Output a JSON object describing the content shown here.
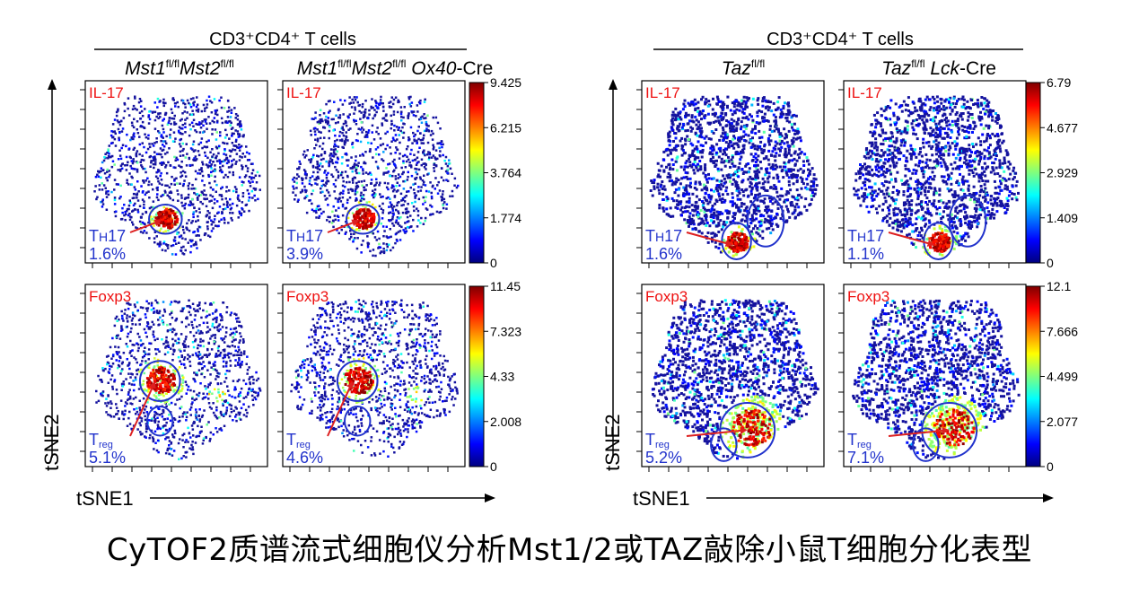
{
  "colors": {
    "cell_low": "#15139e",
    "annotation_blue": "#2233cc",
    "label_red": "#ee1111",
    "arrow_red": "#dd2020",
    "colorbar": [
      "#00007f",
      "#0000ff",
      "#007fff",
      "#00ffff",
      "#7fff7f",
      "#ffff00",
      "#ff7f00",
      "#ff0000",
      "#7f0000"
    ]
  },
  "caption": "CyTOF2质谱流式细胞仪分析Mst1/2或TAZ敲除小鼠T细胞分化表型",
  "chart_data": [
    {
      "type": "scatter",
      "title": "CD3⁺CD4⁺ T cells",
      "xlabel": "tSNE1",
      "ylabel": "tSNE2",
      "columns": [
        {
          "label_parts": [
            "Mst1",
            "fl/fl",
            "Mst2",
            "fl/fl"
          ]
        },
        {
          "label_parts": [
            "Mst1",
            "fl/fl",
            "Mst2",
            "fl/fl",
            " Ox40",
            "-Cre"
          ]
        }
      ],
      "rows": [
        {
          "marker": "IL-17",
          "population": "TH17",
          "population_main": "T",
          "population_sub": "H",
          "population_tail": "17",
          "percentages": [
            "1.6%",
            "3.9%"
          ],
          "colorbar_ticks": [
            "9.425",
            "6.215",
            "3.764",
            "1.774",
            "0"
          ],
          "colorbar_max": 9.425
        },
        {
          "marker": "Foxp3",
          "population": "Treg",
          "population_main": "T",
          "population_sub": "reg",
          "population_tail": "",
          "percentages": [
            "5.1%",
            "4.6%"
          ],
          "colorbar_ticks": [
            "11.45",
            "7.323",
            "4.33",
            "2.008",
            "0"
          ],
          "colorbar_max": 11.45
        }
      ]
    },
    {
      "type": "scatter",
      "title": "CD3⁺CD4⁺ T cells",
      "xlabel": "tSNE1",
      "ylabel": "tSNE2",
      "columns": [
        {
          "label_parts": [
            "Taz",
            "fl/fl"
          ]
        },
        {
          "label_parts": [
            "Taz",
            "fl/fl",
            " Lck",
            "-Cre"
          ]
        }
      ],
      "rows": [
        {
          "marker": "IL-17",
          "population": "TH17",
          "population_main": "T",
          "population_sub": "H",
          "population_tail": "17",
          "percentages": [
            "1.6%",
            "1.1%"
          ],
          "colorbar_ticks": [
            "6.79",
            "4.677",
            "2.929",
            "1.409",
            "0"
          ],
          "colorbar_max": 6.79
        },
        {
          "marker": "Foxp3",
          "population": "Treg",
          "population_main": "T",
          "population_sub": "reg",
          "population_tail": "",
          "percentages": [
            "5.2%",
            "7.1%"
          ],
          "colorbar_ticks": [
            "12.1",
            "7.666",
            "4.499",
            "2.077",
            "0"
          ],
          "colorbar_max": 12.1
        }
      ]
    }
  ]
}
